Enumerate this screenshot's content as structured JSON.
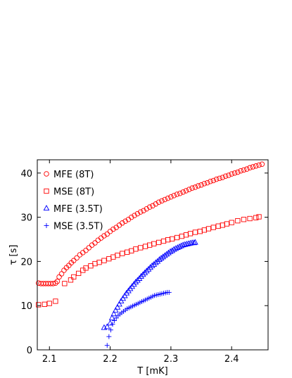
{
  "chart_data": {
    "type": "scatter",
    "title": "",
    "xlabel": "T [mK]",
    "ylabel": "τ [s]",
    "xlim": [
      2.08,
      2.46
    ],
    "ylim": [
      0,
      43
    ],
    "xticks": [
      2.1,
      2.2,
      2.3,
      2.4
    ],
    "yticks": [
      0,
      10,
      20,
      30,
      40
    ],
    "xtick_labels": [
      "2.1",
      "2.2",
      "2.3",
      "2.4"
    ],
    "ytick_labels": [
      "0",
      "10",
      "20",
      "30",
      "40"
    ],
    "grid": false,
    "legend_position": "top-left",
    "series": [
      {
        "name": "MFE (8T)",
        "marker": "circle",
        "color": "#ff0000",
        "x": [
          2.082,
          2.086,
          2.09,
          2.094,
          2.098,
          2.102,
          2.106,
          2.11,
          2.113,
          2.116,
          2.12,
          2.124,
          2.128,
          2.132,
          2.136,
          2.14,
          2.145,
          2.15,
          2.155,
          2.16,
          2.165,
          2.17,
          2.175,
          2.18,
          2.185,
          2.19,
          2.195,
          2.2,
          2.205,
          2.21,
          2.215,
          2.22,
          2.225,
          2.23,
          2.235,
          2.24,
          2.245,
          2.25,
          2.255,
          2.26,
          2.265,
          2.27,
          2.275,
          2.28,
          2.285,
          2.29,
          2.295,
          2.3,
          2.305,
          2.31,
          2.315,
          2.32,
          2.325,
          2.33,
          2.335,
          2.34,
          2.345,
          2.35,
          2.355,
          2.36,
          2.365,
          2.37,
          2.375,
          2.38,
          2.385,
          2.39,
          2.395,
          2.4,
          2.405,
          2.41,
          2.415,
          2.42,
          2.425,
          2.43,
          2.435,
          2.44,
          2.445,
          2.45
        ],
        "y": [
          15.1,
          15.0,
          15.0,
          15.0,
          15.0,
          15.0,
          15.0,
          15.1,
          15.5,
          16.5,
          17.2,
          18.0,
          18.6,
          19.1,
          19.7,
          20.2,
          20.8,
          21.5,
          22.0,
          22.5,
          23.1,
          23.7,
          24.2,
          24.8,
          25.3,
          25.8,
          26.2,
          26.8,
          27.3,
          27.7,
          28.2,
          28.7,
          29.1,
          29.5,
          30.0,
          30.4,
          30.8,
          31.2,
          31.5,
          31.9,
          32.3,
          32.6,
          33.0,
          33.4,
          33.7,
          34.0,
          34.3,
          34.6,
          34.9,
          35.2,
          35.4,
          35.7,
          36.0,
          36.3,
          36.6,
          36.8,
          37.1,
          37.3,
          37.6,
          37.8,
          38.1,
          38.3,
          38.6,
          38.8,
          39.0,
          39.3,
          39.5,
          39.8,
          40.0,
          40.2,
          40.5,
          40.7,
          40.9,
          41.2,
          41.4,
          41.6,
          41.8,
          42.0
        ]
      },
      {
        "name": "MSE (8T)",
        "marker": "square",
        "color": "#ff0000",
        "x": [
          2.082,
          2.092,
          2.1,
          2.11,
          2.125,
          2.135,
          2.14,
          2.148,
          2.155,
          2.16,
          2.168,
          2.175,
          2.182,
          2.19,
          2.198,
          2.205,
          2.212,
          2.22,
          2.228,
          2.235,
          2.242,
          2.25,
          2.258,
          2.265,
          2.272,
          2.28,
          2.288,
          2.295,
          2.302,
          2.31,
          2.318,
          2.325,
          2.332,
          2.34,
          2.348,
          2.355,
          2.362,
          2.37,
          2.378,
          2.385,
          2.392,
          2.4,
          2.41,
          2.42,
          2.43,
          2.44,
          2.445
        ],
        "y": [
          10.2,
          10.3,
          10.5,
          11.0,
          15.0,
          15.8,
          16.5,
          17.3,
          18.0,
          18.5,
          19.0,
          19.5,
          19.8,
          20.2,
          20.6,
          21.0,
          21.4,
          21.8,
          22.1,
          22.4,
          22.8,
          23.1,
          23.4,
          23.7,
          24.0,
          24.3,
          24.6,
          24.9,
          25.1,
          25.4,
          25.7,
          26.0,
          26.3,
          26.6,
          26.8,
          27.1,
          27.4,
          27.7,
          28.0,
          28.2,
          28.5,
          28.8,
          29.2,
          29.5,
          29.7,
          29.9,
          30.1
        ]
      },
      {
        "name": "MFE (3.5T)",
        "marker": "triangle",
        "color": "#0000ff",
        "x": [
          2.19,
          2.195,
          2.2,
          2.203,
          2.206,
          2.209,
          2.212,
          2.215,
          2.218,
          2.221,
          2.224,
          2.227,
          2.23,
          2.233,
          2.236,
          2.239,
          2.242,
          2.245,
          2.248,
          2.251,
          2.254,
          2.257,
          2.26,
          2.263,
          2.266,
          2.269,
          2.272,
          2.275,
          2.278,
          2.281,
          2.284,
          2.287,
          2.29,
          2.293,
          2.296,
          2.299,
          2.302,
          2.305,
          2.308,
          2.311,
          2.314,
          2.317,
          2.32,
          2.323,
          2.326,
          2.329,
          2.332,
          2.335,
          2.338,
          2.34
        ],
        "y": [
          5.0,
          5.2,
          6.0,
          7.2,
          8.1,
          8.9,
          9.6,
          10.3,
          11.0,
          11.6,
          12.2,
          12.8,
          13.3,
          13.8,
          14.3,
          14.8,
          15.3,
          15.7,
          16.1,
          16.6,
          17.0,
          17.4,
          17.8,
          18.2,
          18.6,
          19.0,
          19.3,
          19.7,
          20.0,
          20.4,
          20.7,
          21.0,
          21.3,
          21.6,
          21.9,
          22.2,
          22.4,
          22.7,
          22.9,
          23.1,
          23.3,
          23.5,
          23.7,
          23.8,
          23.9,
          24.0,
          24.1,
          24.2,
          24.2,
          24.3
        ]
      },
      {
        "name": "MSE (3.5T)",
        "marker": "plus",
        "color": "#0000ff",
        "x": [
          2.195,
          2.198,
          2.201,
          2.204,
          2.207,
          2.21,
          2.213,
          2.216,
          2.219,
          2.222,
          2.225,
          2.228,
          2.231,
          2.234,
          2.237,
          2.24,
          2.243,
          2.246,
          2.249,
          2.252,
          2.255,
          2.258,
          2.261,
          2.264,
          2.267,
          2.27,
          2.273,
          2.276,
          2.279,
          2.282,
          2.285,
          2.288,
          2.291,
          2.294,
          2.297
        ],
        "y": [
          1.0,
          3.0,
          4.5,
          5.8,
          6.6,
          7.2,
          7.7,
          8.1,
          8.4,
          8.7,
          9.0,
          9.3,
          9.5,
          9.7,
          9.9,
          10.1,
          10.3,
          10.5,
          10.7,
          10.9,
          11.1,
          11.3,
          11.5,
          11.7,
          11.9,
          12.1,
          12.3,
          12.4,
          12.5,
          12.6,
          12.7,
          12.8,
          12.9,
          13.0,
          13.0
        ]
      }
    ]
  }
}
